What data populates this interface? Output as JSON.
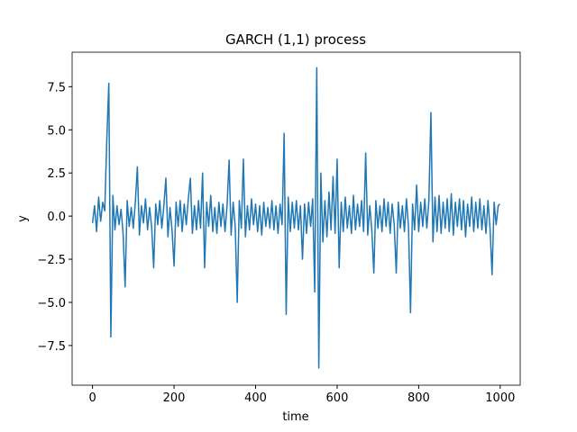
{
  "chart_data": {
    "type": "line",
    "title": "GARCH (1,1) process",
    "xlabel": "time",
    "ylabel": "y",
    "color": "#1f77b4",
    "x": [
      0,
      5,
      10,
      15,
      20,
      25,
      30,
      35,
      40,
      45,
      50,
      55,
      60,
      65,
      70,
      75,
      80,
      85,
      90,
      95,
      100,
      105,
      110,
      115,
      120,
      125,
      130,
      135,
      140,
      145,
      150,
      155,
      160,
      165,
      170,
      175,
      180,
      185,
      190,
      195,
      200,
      205,
      210,
      215,
      220,
      225,
      230,
      235,
      240,
      245,
      250,
      255,
      260,
      265,
      270,
      275,
      280,
      285,
      290,
      295,
      300,
      305,
      310,
      315,
      320,
      325,
      330,
      335,
      340,
      345,
      350,
      355,
      360,
      365,
      370,
      375,
      380,
      385,
      390,
      395,
      400,
      405,
      410,
      415,
      420,
      425,
      430,
      435,
      440,
      445,
      450,
      455,
      460,
      465,
      470,
      475,
      480,
      485,
      490,
      495,
      500,
      505,
      510,
      515,
      520,
      525,
      530,
      535,
      540,
      545,
      550,
      555,
      560,
      565,
      570,
      575,
      580,
      585,
      590,
      595,
      600,
      605,
      610,
      615,
      620,
      625,
      630,
      635,
      640,
      645,
      650,
      655,
      660,
      665,
      670,
      675,
      680,
      685,
      690,
      695,
      700,
      705,
      710,
      715,
      720,
      725,
      730,
      735,
      740,
      745,
      750,
      755,
      760,
      765,
      770,
      775,
      780,
      785,
      790,
      795,
      800,
      805,
      810,
      815,
      820,
      825,
      830,
      835,
      840,
      845,
      850,
      855,
      860,
      865,
      870,
      875,
      880,
      885,
      890,
      895,
      900,
      905,
      910,
      915,
      920,
      925,
      930,
      935,
      940,
      945,
      950,
      955,
      960,
      965,
      970,
      975,
      980,
      985,
      990,
      995,
      999
    ],
    "values": [
      -0.4,
      0.6,
      -0.9,
      1.1,
      -0.3,
      0.8,
      0.3,
      4.4,
      7.7,
      -7.0,
      1.2,
      -0.8,
      0.6,
      -0.5,
      0.4,
      -1.0,
      -4.1,
      0.9,
      -0.6,
      0.5,
      -0.7,
      0.8,
      2.85,
      -1.1,
      0.6,
      -0.4,
      1.0,
      -0.8,
      0.5,
      -0.6,
      -3.0,
      0.7,
      -0.5,
      0.9,
      -0.7,
      0.6,
      2.2,
      -1.2,
      0.5,
      -0.8,
      -2.9,
      0.8,
      -0.6,
      0.9,
      -0.9,
      0.7,
      -0.5,
      1.0,
      2.2,
      -1.0,
      0.6,
      -0.8,
      0.9,
      -0.7,
      2.5,
      -3.0,
      0.8,
      -0.6,
      1.2,
      -0.9,
      0.5,
      -1.0,
      0.8,
      -0.6,
      0.7,
      -0.9,
      0.6,
      3.25,
      -1.1,
      0.8,
      -0.6,
      -5.0,
      0.9,
      -0.7,
      3.3,
      -1.2,
      0.6,
      -0.8,
      1.0,
      -0.5,
      0.7,
      -0.9,
      0.6,
      -1.1,
      0.8,
      -0.6,
      0.5,
      -0.7,
      0.9,
      -0.8,
      0.6,
      -1.0,
      0.7,
      -0.5,
      4.8,
      -5.7,
      1.1,
      -0.9,
      0.8,
      -0.7,
      0.9,
      -0.8,
      0.6,
      -2.5,
      0.7,
      -1.0,
      0.8,
      -0.6,
      1.0,
      -4.4,
      8.6,
      -8.8,
      2.5,
      -1.5,
      0.9,
      -1.2,
      1.4,
      -0.8,
      2.3,
      -1.0,
      3.3,
      -3.0,
      0.8,
      -0.9,
      1.1,
      -0.7,
      0.6,
      -1.0,
      1.2,
      -0.8,
      0.7,
      -0.6,
      0.9,
      -0.9,
      3.65,
      -1.1,
      0.6,
      -0.8,
      -3.3,
      0.9,
      -0.7,
      0.6,
      -0.9,
      1.0,
      -0.6,
      0.8,
      -1.0,
      0.7,
      -0.5,
      -3.3,
      0.8,
      -0.7,
      0.6,
      -0.9,
      1.0,
      -0.6,
      -5.6,
      0.7,
      -0.8,
      1.8,
      -0.9,
      0.8,
      -0.6,
      1.0,
      -0.7,
      0.9,
      6.0,
      -1.5,
      1.1,
      -0.9,
      1.2,
      -1.0,
      0.8,
      -0.7,
      1.0,
      -0.9,
      1.3,
      -1.1,
      0.8,
      -0.6,
      1.0,
      -0.8,
      0.9,
      -1.2,
      0.7,
      -0.6,
      1.1,
      -0.9,
      0.8,
      -0.7,
      1.0,
      -0.8,
      0.6,
      -1.0,
      0.9,
      -0.7,
      -3.4,
      0.8,
      -0.5,
      0.6,
      0.7
    ],
    "xlim": [
      -50,
      1049
    ],
    "ylim": [
      -9.8,
      9.5
    ],
    "xticks": [
      0,
      200,
      400,
      600,
      800,
      1000
    ],
    "yticks": [
      {
        "value": -7.5,
        "label": "−7.5"
      },
      {
        "value": -5,
        "label": "−5.0"
      },
      {
        "value": -2.5,
        "label": "−2.5"
      },
      {
        "value": 0,
        "label": "0.0"
      },
      2.5,
      {
        "value": 5,
        "label": "5.0"
      },
      7.5
    ]
  }
}
